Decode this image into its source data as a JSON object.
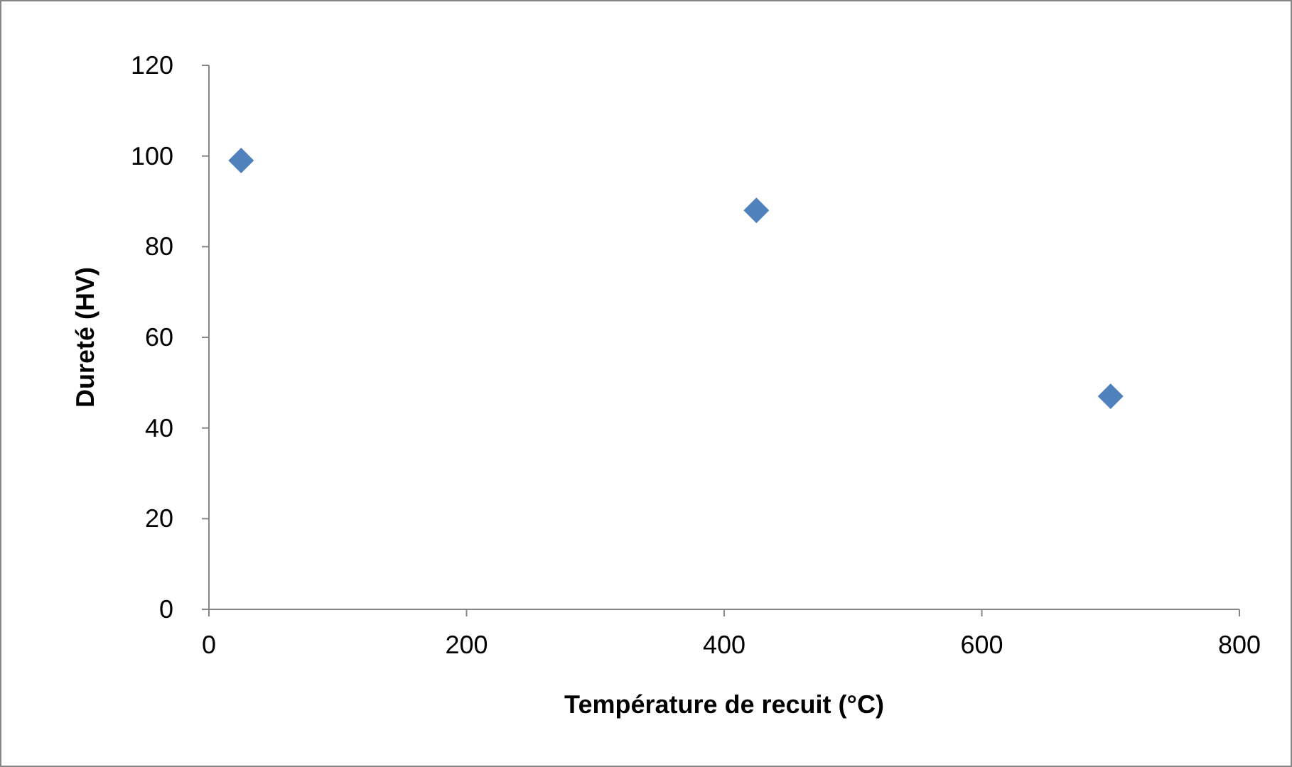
{
  "chart_data": {
    "type": "scatter",
    "xlabel": "Température de recuit (°C)",
    "ylabel": "Dureté (HV)",
    "x": [
      25,
      425,
      700
    ],
    "series": [
      {
        "color": "#4f81bd",
        "values": [
          99,
          88,
          47
        ]
      }
    ],
    "xlim": [
      0,
      800
    ],
    "xticks": [
      0,
      200,
      400,
      600,
      800
    ],
    "ylim": [
      0,
      120
    ],
    "yticks": [
      0,
      20,
      40,
      60,
      80,
      100,
      120
    ],
    "marker": "diamond",
    "grid": false
  }
}
